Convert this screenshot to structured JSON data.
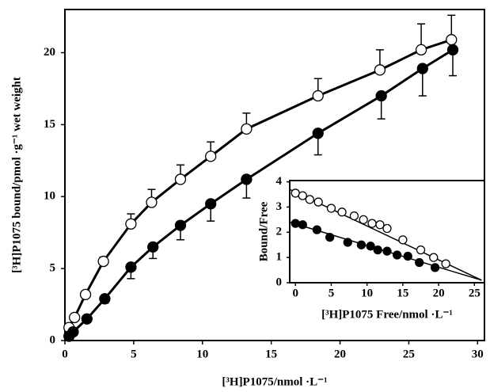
{
  "chart_data": [
    {
      "type": "line",
      "xlabel": "[³H]P1075/nmol ·L⁻¹",
      "ylabel": "[³H]P1075 bound/pmol ·g⁻¹ wet weight",
      "xlim": [
        0,
        30.5
      ],
      "ylim": [
        0,
        23
      ],
      "xticks": [
        0,
        5,
        10,
        15,
        20,
        25,
        30
      ],
      "yticks": [
        0,
        5,
        10,
        15,
        20
      ],
      "series": [
        {
          "color": "#000000",
          "filled": false,
          "error_direction": "up",
          "x": [
            0.3,
            0.7,
            1.5,
            2.8,
            4.8,
            6.3,
            8.4,
            10.6,
            13.2,
            18.4,
            22.9,
            25.9,
            28.1
          ],
          "values": [
            0.9,
            1.6,
            3.2,
            5.5,
            8.1,
            9.6,
            11.2,
            12.8,
            14.7,
            17.0,
            18.8,
            20.2,
            20.9
          ],
          "errors": [
            0.2,
            0.2,
            0.2,
            0.3,
            0.7,
            0.9,
            1.0,
            1.0,
            1.1,
            1.2,
            1.4,
            1.8,
            1.7
          ]
        },
        {
          "color": "#000000",
          "filled": true,
          "error_direction": "down",
          "x": [
            0.3,
            0.6,
            1.6,
            2.9,
            4.8,
            6.4,
            8.4,
            10.6,
            13.2,
            18.4,
            23.0,
            26.0,
            28.2
          ],
          "values": [
            0.3,
            0.6,
            1.5,
            2.9,
            5.1,
            6.5,
            8.0,
            9.5,
            11.2,
            14.4,
            17.0,
            18.9,
            20.2
          ],
          "errors": [
            0.1,
            0.1,
            0.2,
            0.3,
            0.8,
            0.8,
            1.0,
            1.2,
            1.3,
            1.5,
            1.6,
            1.9,
            1.8
          ]
        }
      ]
    },
    {
      "type": "scatter",
      "xlabel": "[³H]P1075 Free/nmol ·L⁻¹",
      "ylabel": "Bound/Free",
      "xlim": [
        -0.8,
        26.4
      ],
      "ylim": [
        0,
        4.05
      ],
      "xticks": [
        0,
        5,
        10,
        15,
        20,
        25
      ],
      "yticks": [
        0,
        1,
        2,
        3,
        4
      ],
      "series": [
        {
          "color": "#000000",
          "filled": false,
          "x": [
            0,
            1,
            2,
            3.2,
            5,
            6.5,
            8.2,
            9.5,
            10.7,
            11.8,
            12.8,
            15,
            17.5,
            19.3,
            21
          ],
          "values": [
            3.55,
            3.45,
            3.3,
            3.2,
            2.95,
            2.8,
            2.65,
            2.5,
            2.35,
            2.3,
            2.15,
            1.7,
            1.3,
            1.0,
            0.75
          ],
          "fit_x": [
            -0.8,
            26
          ],
          "fit_values": [
            3.7,
            0.1
          ]
        },
        {
          "color": "#000000",
          "filled": true,
          "x": [
            0,
            1,
            3,
            4.8,
            7.3,
            9.2,
            10.5,
            11.5,
            12.8,
            14.2,
            15.7,
            17.3,
            19.5
          ],
          "values": [
            2.35,
            2.3,
            2.1,
            1.8,
            1.6,
            1.5,
            1.45,
            1.3,
            1.25,
            1.1,
            1.05,
            0.8,
            0.6
          ],
          "fit_x": [
            -0.8,
            26
          ],
          "fit_values": [
            2.4,
            0.1
          ]
        }
      ]
    }
  ]
}
